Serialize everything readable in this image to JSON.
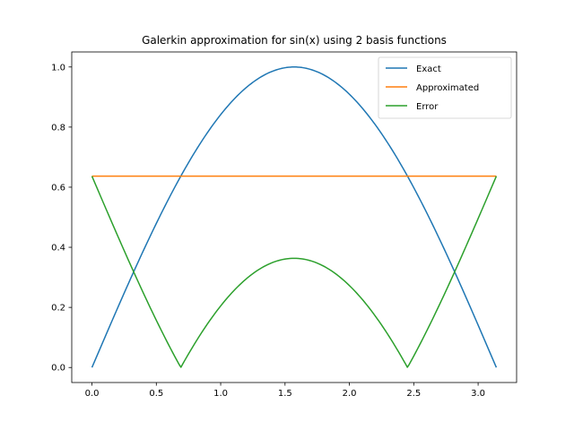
{
  "chart_data": {
    "type": "line",
    "title": "Galerkin approximation for sin(x) using 2 basis functions",
    "xlabel": "",
    "ylabel": "",
    "xlim": [
      -0.157,
      3.299
    ],
    "ylim": [
      -0.05,
      1.05
    ],
    "xticks": [
      0.0,
      0.5,
      1.0,
      1.5,
      2.0,
      2.5,
      3.0
    ],
    "xtick_labels": [
      "0.0",
      "0.5",
      "1.0",
      "1.5",
      "2.0",
      "2.5",
      "3.0"
    ],
    "yticks": [
      0.0,
      0.2,
      0.4,
      0.6,
      0.8,
      1.0
    ],
    "ytick_labels": [
      "0.0",
      "0.2",
      "0.4",
      "0.6",
      "0.8",
      "1.0"
    ],
    "grid": false,
    "legend": {
      "placement": "top-right"
    },
    "series": [
      {
        "name": "Exact",
        "color": "#1f77b4",
        "x": [
          0.0,
          0.1309,
          0.2618,
          0.3927,
          0.5236,
          0.6545,
          0.7854,
          0.9163,
          1.0472,
          1.1781,
          1.309,
          1.4399,
          1.5708,
          1.7017,
          1.8326,
          1.9635,
          2.0944,
          2.2253,
          2.3562,
          2.4871,
          2.618,
          2.7489,
          2.8798,
          3.0107,
          3.1416
        ],
        "y": [
          0.0,
          0.1305,
          0.2588,
          0.3827,
          0.5,
          0.6088,
          0.7071,
          0.7934,
          0.866,
          0.9239,
          0.9659,
          0.9914,
          1.0,
          0.9914,
          0.9659,
          0.9239,
          0.866,
          0.7934,
          0.7071,
          0.6088,
          0.5,
          0.3827,
          0.2588,
          0.1305,
          0.0
        ]
      },
      {
        "name": "Approximated",
        "color": "#ff7f0e",
        "x": [
          0.0,
          3.1416
        ],
        "y": [
          0.6366,
          0.6366
        ]
      },
      {
        "name": "Error",
        "color": "#2ca02c",
        "x": [
          0.0,
          0.1309,
          0.2618,
          0.3927,
          0.5236,
          0.6545,
          0.69,
          0.7854,
          0.9163,
          1.0472,
          1.1781,
          1.309,
          1.4399,
          1.5708,
          1.7017,
          1.8326,
          1.9635,
          2.0944,
          2.2253,
          2.3562,
          2.4516,
          2.4871,
          2.618,
          2.7489,
          2.8798,
          3.0107,
          3.1416
        ],
        "y": [
          0.6366,
          0.5061,
          0.3778,
          0.2539,
          0.1366,
          0.0278,
          0.0,
          0.0705,
          0.1568,
          0.2294,
          0.2873,
          0.3293,
          0.3548,
          0.3634,
          0.3548,
          0.3293,
          0.2873,
          0.2294,
          0.1568,
          0.0705,
          0.0,
          0.0278,
          0.1366,
          0.2539,
          0.3778,
          0.5061,
          0.6366
        ]
      }
    ]
  }
}
